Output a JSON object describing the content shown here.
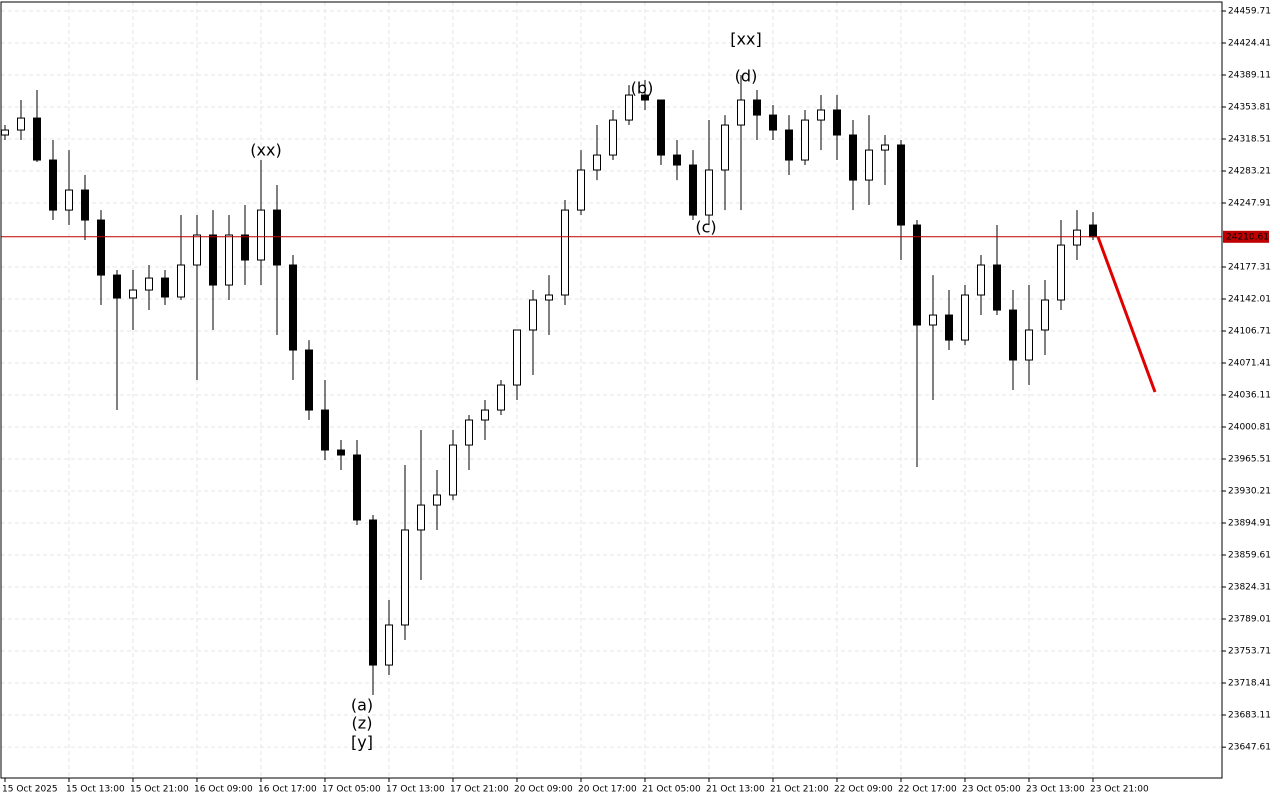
{
  "chart_data": {
    "type": "candlestick",
    "ylim": [
      23613.6,
      24471.84
    ],
    "yticks": [
      24459.71,
      24424.41,
      24389.11,
      24353.81,
      24318.51,
      24283.21,
      24247.91,
      24177.31,
      24142.01,
      24106.71,
      24071.41,
      24036.11,
      24000.81,
      23965.51,
      23930.21,
      23894.91,
      23859.61,
      23824.31,
      23789.01,
      23753.71,
      23718.41,
      23683.11,
      23647.61
    ],
    "grid": true,
    "categories": [
      "15 Oct 2025",
      null,
      null,
      null,
      "15 Oct 13:00",
      null,
      null,
      null,
      "15 Oct 21:00",
      null,
      null,
      null,
      "16 Oct 09:00",
      null,
      null,
      null,
      "16 Oct 17:00",
      null,
      null,
      null,
      "17 Oct 05:00",
      null,
      null,
      null,
      "17 Oct 13:00",
      null,
      null,
      null,
      "17 Oct 21:00",
      null,
      null,
      null,
      "20 Oct 09:00",
      null,
      null,
      null,
      "20 Oct 17:00",
      null,
      null,
      null,
      "21 Oct 05:00",
      null,
      null,
      null,
      "21 Oct 13:00",
      null,
      null,
      null,
      "21 Oct 21:00",
      null,
      null,
      null,
      "22 Oct 09:00",
      null,
      null,
      null,
      "22 Oct 17:00",
      null,
      null,
      null,
      "23 Oct 05:00",
      null,
      null,
      null,
      "23 Oct 13:00",
      null,
      null,
      null,
      "23 Oct 21:00"
    ],
    "open": [
      24322.9,
      24328.4,
      24341.6,
      24295.3,
      24240.1,
      24262.2,
      24229.1,
      24168.4,
      24143.1,
      24151.9,
      24165.1,
      24144.2,
      24179.5,
      24212.6,
      24157.4,
      24212.6,
      24185.0,
      24240.1,
      24179.5,
      24085.7,
      24019.5,
      23975.4,
      23969.9,
      23898.2,
      23738.2,
      23782.4,
      23887.2,
      23914.7,
      23925.8,
      23980.9,
      24008.5,
      24019.5,
      24047.1,
      24107.8,
      24140.9,
      24146.4,
      24240.1,
      24284.3,
      24300.8,
      24339.4,
      24367.0,
      24361.5,
      24300.8,
      24289.8,
      24234.6,
      24284.3,
      24333.9,
      24361.5,
      24344.9,
      24328.4,
      24295.3,
      24339.4,
      24350.5,
      24322.9,
      24273.2,
      24306.3,
      24311.9,
      24223.6,
      24113.3,
      24124.3,
      24096.7,
      24146.4,
      24179.5,
      24129.8,
      24074.7,
      24107.8,
      24140.9,
      24201.5,
      24223.6
    ],
    "high": [
      24333.9,
      24361.5,
      24372.5,
      24317.4,
      24306.3,
      24278.8,
      24240.1,
      24174.0,
      24174.0,
      24179.5,
      24174.0,
      24234.6,
      24234.6,
      24240.1,
      24234.6,
      24245.7,
      24295.3,
      24267.7,
      24190.5,
      24096.7,
      24052.6,
      23986.4,
      23986.4,
      23903.7,
      23809.9,
      23958.9,
      23997.5,
      23953.3,
      23997.5,
      24014.0,
      24030.6,
      24052.6,
      24107.8,
      24151.9,
      24168.4,
      24251.2,
      24306.3,
      24333.9,
      24350.5,
      24378.0,
      24383.6,
      24361.5,
      24317.4,
      24306.3,
      24339.4,
      24344.9,
      24389.1,
      24372.5,
      24356.0,
      24344.9,
      24350.5,
      24367.0,
      24367.0,
      24339.4,
      24344.9,
      24322.9,
      24317.4,
      24229.1,
      24168.4,
      24151.9,
      24157.4,
      24190.5,
      24223.6,
      24151.9,
      24157.4,
      24163.0,
      24229.1,
      24240.1,
      24237.9
    ],
    "low": [
      24317.4,
      24317.4,
      24293.1,
      24229.1,
      24223.6,
      24207.1,
      24135.4,
      24019.5,
      24107.8,
      24129.8,
      24135.4,
      24140.9,
      24052.6,
      24107.8,
      24140.9,
      24157.4,
      24157.4,
      24102.3,
      24052.6,
      24008.5,
      23964.4,
      23953.3,
      23892.7,
      23705.1,
      23727.2,
      23765.8,
      23832.0,
      23887.2,
      23920.2,
      23953.3,
      23986.4,
      24014.0,
      24030.6,
      24058.1,
      24102.3,
      24135.4,
      24234.6,
      24273.2,
      24295.3,
      24333.9,
      24350.5,
      24289.8,
      24273.2,
      24229.1,
      24223.6,
      24240.1,
      24240.1,
      24317.4,
      24317.4,
      24278.8,
      24289.8,
      24306.3,
      24295.3,
      24240.1,
      24245.7,
      24267.7,
      24185.0,
      23956.7,
      24030.6,
      24085.7,
      24091.2,
      24124.3,
      24124.3,
      24041.6,
      24047.1,
      24080.2,
      24129.8,
      24185.0,
      24207.1
    ],
    "close": [
      24328.4,
      24341.6,
      24295.3,
      24240.1,
      24262.2,
      24229.1,
      24168.4,
      24143.1,
      24151.9,
      24165.1,
      24144.2,
      24179.5,
      24212.6,
      24157.4,
      24212.6,
      24185.0,
      24240.1,
      24179.5,
      24085.7,
      24019.5,
      23975.4,
      23969.9,
      23898.2,
      23738.2,
      23782.4,
      23887.2,
      23914.7,
      23925.8,
      23980.9,
      24008.5,
      24019.5,
      24047.1,
      24107.8,
      24140.9,
      24146.4,
      24240.1,
      24284.3,
      24300.8,
      24339.4,
      24367.0,
      24361.5,
      24300.8,
      24289.8,
      24234.6,
      24284.3,
      24333.9,
      24361.5,
      24344.9,
      24328.4,
      24295.3,
      24339.4,
      24350.5,
      24322.9,
      24273.2,
      24306.3,
      24311.9,
      24223.6,
      24113.3,
      24124.3,
      24096.7,
      24146.4,
      24179.5,
      24129.8,
      24074.7,
      24107.8,
      24140.9,
      24201.5,
      24218.0,
      24210.61
    ],
    "current_price": 24210.61,
    "current_price_color": "#c00000",
    "annotations": [
      {
        "text": "(xx)",
        "color": "#1a1adb"
      },
      {
        "text": "(a)",
        "color": "#1a1adb"
      },
      {
        "text": "(z)",
        "color": "#1a1adb"
      },
      {
        "text": "[y]",
        "color": "#2eb82e"
      },
      {
        "text": "(b)",
        "color": "#1a1adb"
      },
      {
        "text": "[xx]",
        "color": "#2eb82e"
      },
      {
        "text": "(d)",
        "color": "#1a1adb"
      },
      {
        "text": "(c)",
        "color": "#1a1adb"
      }
    ]
  }
}
